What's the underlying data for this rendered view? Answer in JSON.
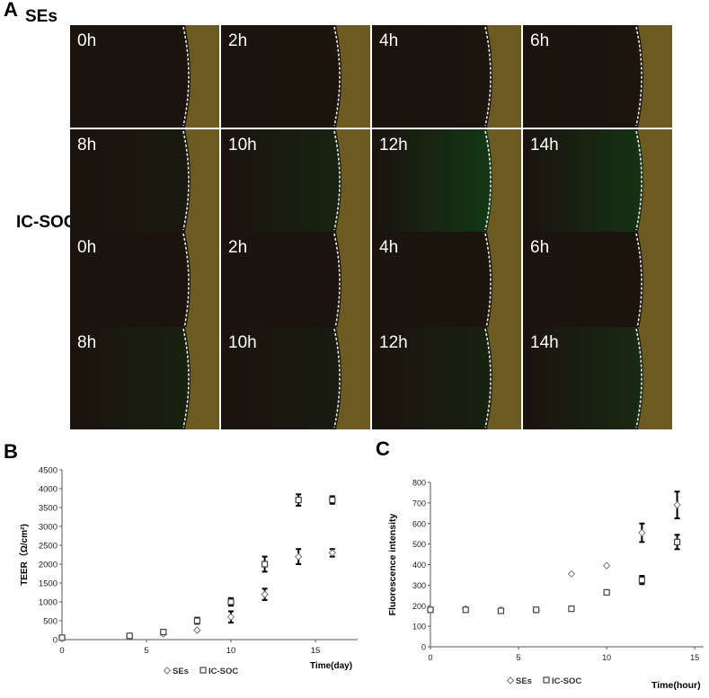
{
  "figure": {
    "panel_a": {
      "letter": "A",
      "groups": [
        {
          "title": "SEs",
          "tiles": [
            {
              "label": "0h",
              "green": 0.0
            },
            {
              "label": "2h",
              "green": 0.02
            },
            {
              "label": "4h",
              "green": 0.05
            },
            {
              "label": "6h",
              "green": 0.05
            },
            {
              "label": "8h",
              "green": 0.15
            },
            {
              "label": "10h",
              "green": 0.35
            },
            {
              "label": "12h",
              "green": 0.8
            },
            {
              "label": "14h",
              "green": 0.7
            }
          ]
        },
        {
          "title": "IC-SOC",
          "tiles": [
            {
              "label": "0h",
              "green": 0.0
            },
            {
              "label": "2h",
              "green": 0.0
            },
            {
              "label": "4h",
              "green": 0.03
            },
            {
              "label": "6h",
              "green": 0.03
            },
            {
              "label": "8h",
              "green": 0.3
            },
            {
              "label": "10h",
              "green": 0.2
            },
            {
              "label": "12h",
              "green": 0.3
            },
            {
              "label": "14h",
              "green": 0.5
            }
          ]
        }
      ],
      "colors": {
        "dark": "#1b130d",
        "green": "#123d18",
        "tissue": "#6d5a22",
        "dash": "#e8e8e8"
      }
    },
    "panel_b": {
      "letter": "B"
    },
    "panel_c": {
      "letter": "C"
    }
  },
  "chart_data": [
    {
      "type": "scatter",
      "panel": "B",
      "ylabel": "TEER（Ω/cm²)",
      "xlabel": "Time(day)",
      "xlim": [
        0,
        17.5
      ],
      "ylim": [
        0,
        4500
      ],
      "xticks": [
        "0",
        "5",
        "10",
        "15"
      ],
      "xtick_values": [
        0,
        5,
        10,
        15
      ],
      "yticks": [
        "0",
        "500",
        "1000",
        "1500",
        "2000",
        "2500",
        "3000",
        "3500",
        "4000",
        "4500"
      ],
      "ytick_values": [
        0,
        500,
        1000,
        1500,
        2000,
        2500,
        3000,
        3500,
        4000,
        4500
      ],
      "legend": {
        "placement": "bottom",
        "entries": [
          "SEs",
          "IC-SOC"
        ]
      },
      "series": [
        {
          "name": "SEs",
          "marker": "diamond",
          "x": [
            0,
            4,
            6,
            8,
            10,
            12,
            14,
            16
          ],
          "y": [
            50,
            100,
            150,
            250,
            600,
            1200,
            2200,
            2300
          ],
          "err": [
            0,
            0,
            0,
            0,
            150,
            150,
            200,
            100
          ]
        },
        {
          "name": "IC-SOC",
          "marker": "square",
          "x": [
            0,
            4,
            6,
            8,
            10,
            12,
            14,
            16
          ],
          "y": [
            50,
            100,
            200,
            500,
            1000,
            2000,
            3700,
            3700
          ],
          "err": [
            0,
            0,
            0,
            80,
            100,
            200,
            150,
            100
          ]
        }
      ]
    },
    {
      "type": "scatter",
      "panel": "C",
      "ylabel": "Fluorescence intensity",
      "xlabel": "Time(hour)",
      "xlim": [
        0,
        15.5
      ],
      "ylim": [
        0,
        800
      ],
      "xticks": [
        "0",
        "5",
        "10",
        "15"
      ],
      "xtick_values": [
        0,
        5,
        10,
        15
      ],
      "yticks": [
        "0",
        "100",
        "200",
        "300",
        "400",
        "500",
        "600",
        "700",
        "800"
      ],
      "ytick_values": [
        0,
        100,
        200,
        300,
        400,
        500,
        600,
        700,
        800
      ],
      "legend": {
        "placement": "bottom",
        "entries": [
          "SEs",
          "IC-SOC"
        ]
      },
      "series": [
        {
          "name": "SEs",
          "marker": "diamond",
          "x": [
            0,
            2,
            4,
            6,
            8,
            10,
            12,
            14
          ],
          "y": [
            180,
            185,
            180,
            180,
            355,
            395,
            555,
            690
          ],
          "err": [
            0,
            0,
            0,
            0,
            0,
            0,
            45,
            65
          ]
        },
        {
          "name": "IC-SOC",
          "marker": "square",
          "x": [
            0,
            2,
            4,
            6,
            8,
            10,
            12,
            14
          ],
          "y": [
            180,
            180,
            175,
            180,
            185,
            265,
            325,
            510
          ],
          "err": [
            0,
            0,
            0,
            0,
            0,
            0,
            20,
            35
          ]
        }
      ]
    }
  ]
}
